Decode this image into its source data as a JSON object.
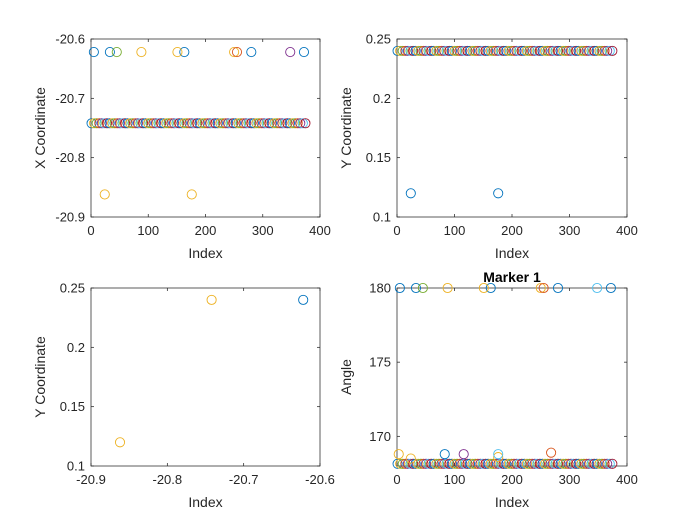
{
  "colors": [
    "#0072BD",
    "#EDB120",
    "#77AC30",
    "#D95319",
    "#7E2F8E",
    "#4DBEEE",
    "#A2142F"
  ],
  "chart_data": [
    {
      "type": "scatter",
      "title": "",
      "xlabel": "Index",
      "ylabel": "X Coordinate",
      "xlim": [
        0,
        400
      ],
      "ylim": [
        -20.9,
        -20.6
      ],
      "xticks": [
        0,
        100,
        200,
        300,
        400
      ],
      "yticks": [
        -20.9,
        -20.8,
        -20.7,
        -20.6
      ],
      "ytick_labels": [
        "-20.9",
        "-20.8",
        "-20.7",
        "-20.6"
      ],
      "grid": false,
      "series": [
        {
          "values": [
            {
              "x": 5,
              "y": -20.622
            },
            {
              "x": 33,
              "y": -20.622
            },
            {
              "x": 163,
              "y": -20.622
            },
            {
              "x": 280,
              "y": -20.622
            },
            {
              "x": 372,
              "y": -20.622
            }
          ]
        },
        {
          "values": [
            {
              "x": 24,
              "y": -20.862
            },
            {
              "x": 176,
              "y": -20.862
            },
            {
              "x": 88,
              "y": -20.622
            },
            {
              "x": 151,
              "y": -20.622
            },
            {
              "x": 250,
              "y": -20.622
            }
          ]
        },
        {
          "values": [
            {
              "x": 45,
              "y": -20.622
            }
          ]
        },
        {
          "values": [
            {
              "x": 255,
              "y": -20.622
            }
          ]
        },
        {
          "values": [
            {
              "x": 348,
              "y": -20.622
            }
          ]
        }
      ],
      "dense_band": {
        "x_from": 1,
        "x_to": 375,
        "step": 4.5,
        "y": -20.742
      }
    },
    {
      "type": "scatter",
      "title": "",
      "xlabel": "Index",
      "ylabel": "Y Coordinate",
      "xlim": [
        0,
        400
      ],
      "ylim": [
        0.1,
        0.25
      ],
      "xticks": [
        0,
        100,
        200,
        300,
        400
      ],
      "yticks": [
        0.1,
        0.15,
        0.2,
        0.25
      ],
      "ytick_labels": [
        "0.1",
        "0.15",
        "0.2",
        "0.25"
      ],
      "grid": false,
      "series": [
        {
          "values": [
            {
              "x": 24,
              "y": 0.12
            },
            {
              "x": 176,
              "y": 0.12
            }
          ]
        }
      ],
      "dense_band": {
        "x_from": 1,
        "x_to": 375,
        "step": 4.5,
        "y": 0.24
      }
    },
    {
      "type": "scatter",
      "title": "",
      "xlabel": "Index",
      "ylabel": "Y Coordinate",
      "xlim": [
        -20.9,
        -20.6
      ],
      "ylim": [
        0.1,
        0.25
      ],
      "xticks": [
        -20.9,
        -20.8,
        -20.7,
        -20.6
      ],
      "xtick_labels": [
        "-20.9",
        "-20.8",
        "-20.7",
        "-20.6"
      ],
      "yticks": [
        0.1,
        0.15,
        0.2,
        0.25
      ],
      "ytick_labels": [
        "0.1",
        "0.15",
        "0.2",
        "0.25"
      ],
      "grid": false,
      "series": [
        {
          "values": [
            {
              "x": -20.622,
              "y": 0.24
            }
          ]
        },
        {
          "values": [
            {
              "x": -20.862,
              "y": 0.12
            },
            {
              "x": -20.742,
              "y": 0.24
            }
          ]
        }
      ]
    },
    {
      "type": "scatter",
      "title": "Marker 1",
      "xlabel": "Index",
      "ylabel": "Angle",
      "xlim": [
        0,
        400
      ],
      "ylim": [
        168,
        180
      ],
      "xticks": [
        0,
        100,
        200,
        300,
        400
      ],
      "yticks": [
        170,
        175,
        180
      ],
      "ytick_labels": [
        "170",
        "175",
        "180"
      ],
      "grid": false,
      "series": [
        {
          "values": [
            {
              "x": 5,
              "y": 180
            },
            {
              "x": 33,
              "y": 180
            },
            {
              "x": 163,
              "y": 180
            },
            {
              "x": 280,
              "y": 180
            },
            {
              "x": 372,
              "y": 180
            },
            {
              "x": 83,
              "y": 168.8
            }
          ]
        },
        {
          "values": [
            {
              "x": 88,
              "y": 180
            },
            {
              "x": 151,
              "y": 180
            },
            {
              "x": 250,
              "y": 180
            },
            {
              "x": 24,
              "y": 168.5
            },
            {
              "x": 176,
              "y": 168.6
            },
            {
              "x": 3,
              "y": 168.8
            }
          ]
        },
        {
          "values": [
            {
              "x": 45,
              "y": 180
            }
          ]
        },
        {
          "values": [
            {
              "x": 255,
              "y": 180
            },
            {
              "x": 268,
              "y": 168.9
            }
          ]
        },
        {
          "values": [
            {
              "x": 116,
              "y": 168.8
            }
          ]
        },
        {
          "values": [
            {
              "x": 348,
              "y": 180
            },
            {
              "x": 176,
              "y": 168.8
            }
          ]
        }
      ],
      "dense_band": {
        "x_from": 1,
        "x_to": 375,
        "step": 4.5,
        "y": 168.15
      }
    }
  ]
}
